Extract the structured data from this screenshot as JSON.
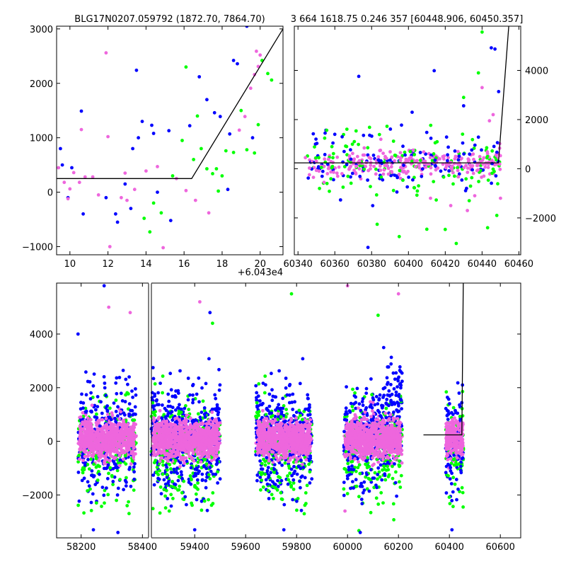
{
  "panels": {
    "top_left_title": "BLG17N0207.059792 (1872.70, 7864.70)",
    "top_right_title": "3 664 1618.75 0.246 357 [60448.906, 60450.357]",
    "top_left_offset": "+6.043e4"
  },
  "colors": {
    "blue": "#0000ff",
    "green": "#00ff00",
    "pink": "#ee66dd",
    "model": "#000000"
  },
  "chart_data": [
    {
      "id": "zoom",
      "type": "scatter",
      "title": "BLG17N0207.059792 (1872.70, 7864.70)",
      "x_offset_label": "+6.043e4",
      "xlim": [
        9.3,
        21.2
      ],
      "ylim": [
        -1150,
        3050
      ],
      "xticks": [
        10,
        12,
        14,
        16,
        18,
        20
      ],
      "yticks": [
        -1000,
        0,
        1000,
        2000,
        3000
      ],
      "model": [
        [
          9.3,
          250
        ],
        [
          16.4,
          250
        ],
        [
          21.2,
          3000
        ]
      ],
      "series": [
        {
          "color": "blue",
          "points": [
            [
              9.5,
              800
            ],
            [
              9.6,
              500
            ],
            [
              9.9,
              -100
            ],
            [
              10.1,
              450
            ],
            [
              10.6,
              1490
            ],
            [
              10.7,
              -400
            ],
            [
              11.9,
              -100
            ],
            [
              12.4,
              -400
            ],
            [
              12.5,
              -550
            ],
            [
              13.2,
              -300
            ],
            [
              13.3,
              800
            ],
            [
              13.6,
              1000
            ],
            [
              13.5,
              2240
            ],
            [
              13.8,
              1300
            ],
            [
              14.3,
              1230
            ],
            [
              14.6,
              0
            ],
            [
              15.2,
              1130
            ],
            [
              15.3,
              -520
            ],
            [
              16.3,
              1220
            ],
            [
              16.8,
              2120
            ],
            [
              17.2,
              1700
            ],
            [
              17.6,
              1460
            ],
            [
              17.9,
              1390
            ],
            [
              18.4,
              1070
            ],
            [
              18.6,
              2420
            ],
            [
              18.8,
              2360
            ],
            [
              19.3,
              3050
            ],
            [
              19.6,
              1000
            ],
            [
              18.3,
              50
            ],
            [
              14.4,
              1080
            ],
            [
              12.9,
              150
            ]
          ]
        },
        {
          "color": "green",
          "points": [
            [
              13.9,
              -480
            ],
            [
              14.2,
              -730
            ],
            [
              14.4,
              -200
            ],
            [
              14.8,
              -380
            ],
            [
              15.4,
              300
            ],
            [
              16.1,
              2300
            ],
            [
              16.5,
              600
            ],
            [
              16.9,
              800
            ],
            [
              17.2,
              430
            ],
            [
              17.5,
              340
            ],
            [
              17.7,
              430
            ],
            [
              18.0,
              300
            ],
            [
              18.2,
              760
            ],
            [
              18.6,
              730
            ],
            [
              19.0,
              1500
            ],
            [
              19.3,
              780
            ],
            [
              19.7,
              720
            ],
            [
              19.9,
              1240
            ],
            [
              20.1,
              2420
            ],
            [
              20.4,
              2180
            ],
            [
              20.6,
              2060
            ],
            [
              17.8,
              20
            ],
            [
              15.9,
              950
            ],
            [
              16.7,
              1400
            ]
          ]
        },
        {
          "color": "pink",
          "points": [
            [
              9.4,
              450
            ],
            [
              9.7,
              180
            ],
            [
              10.0,
              60
            ],
            [
              10.2,
              360
            ],
            [
              10.5,
              180
            ],
            [
              10.8,
              280
            ],
            [
              10.6,
              1150
            ],
            [
              11.2,
              280
            ],
            [
              11.9,
              2560
            ],
            [
              12.0,
              1020
            ],
            [
              12.1,
              -1000
            ],
            [
              12.7,
              -100
            ],
            [
              12.9,
              350
            ],
            [
              13.4,
              50
            ],
            [
              14.0,
              390
            ],
            [
              14.6,
              470
            ],
            [
              14.9,
              -1020
            ],
            [
              15.6,
              250
            ],
            [
              16.1,
              30
            ],
            [
              16.6,
              -150
            ],
            [
              17.3,
              -380
            ],
            [
              18.9,
              1140
            ],
            [
              19.2,
              1390
            ],
            [
              19.5,
              1910
            ],
            [
              19.7,
              2160
            ],
            [
              19.9,
              2310
            ],
            [
              20.0,
              2520
            ],
            [
              19.8,
              2590
            ],
            [
              9.9,
              -120
            ],
            [
              11.5,
              -50
            ],
            [
              13.0,
              -150
            ]
          ]
        }
      ]
    },
    {
      "id": "recent",
      "type": "scatter",
      "title": "3 664 1618.75 0.246 357 [60448.906, 60450.357]",
      "xlim": [
        60338,
        60461
      ],
      "ylim": [
        -3500,
        5800
      ],
      "xticks": [
        60340,
        60360,
        60380,
        60400,
        60420,
        60440,
        60460
      ],
      "yticks": [
        -2000,
        0,
        2000,
        4000
      ],
      "model": [
        [
          60338,
          240
        ],
        [
          60448.9,
          240
        ],
        [
          60454.5,
          5800
        ]
      ],
      "series": [
        {
          "color": "blue",
          "points": [
            [
              60373,
              3760
            ],
            [
              60378,
              -3200
            ],
            [
              60402,
              2300
            ],
            [
              60414,
              3990
            ],
            [
              60430,
              2560
            ],
            [
              60445,
              4920
            ],
            [
              60447,
              4870
            ],
            [
              60449,
              3140
            ],
            [
              60360,
              1400
            ],
            [
              60364,
              1300
            ]
          ]
        },
        {
          "color": "green",
          "points": [
            [
              60383,
              -2260
            ],
            [
              60395,
              -2760
            ],
            [
              60410,
              -2460
            ],
            [
              60420,
              -2470
            ],
            [
              60426,
              -3040
            ],
            [
              60430,
              2900
            ],
            [
              60438,
              3900
            ],
            [
              60440,
              5560
            ],
            [
              60443,
              -2400
            ],
            [
              60448,
              -1900
            ],
            [
              60433,
              -1300
            ]
          ]
        },
        {
          "color": "pink",
          "points": [
            [
              60344,
              450
            ],
            [
              60350,
              300
            ],
            [
              60356,
              -200
            ],
            [
              60368,
              520
            ],
            [
              60385,
              1200
            ],
            [
              60412,
              -1200
            ],
            [
              60423,
              -1500
            ],
            [
              60432,
              -1700
            ],
            [
              60436,
              -1100
            ],
            [
              60440,
              3300
            ],
            [
              60444,
              1950
            ],
            [
              60446,
              2200
            ],
            [
              60450,
              -1200
            ]
          ]
        }
      ]
    },
    {
      "id": "full",
      "type": "scatter",
      "xlim": [
        58120,
        60680
      ],
      "ylim": [
        -3600,
        5900
      ],
      "axis_break_x": 58420,
      "xticks": [
        58200,
        58400,
        59400,
        59600,
        59800,
        60000,
        60200,
        60400,
        60600
      ],
      "yticks": [
        -2000,
        0,
        2000,
        4000
      ],
      "seasons": [
        [
          58190,
          58380
        ],
        [
          59230,
          59500
        ],
        [
          59640,
          59860
        ],
        [
          59985,
          60215
        ],
        [
          60385,
          60455
        ]
      ],
      "model": [
        [
          60298,
          240
        ],
        [
          60448.9,
          240
        ],
        [
          60454.5,
          5900
        ]
      ],
      "series": [
        {
          "color": "blue",
          "points": [
            [
              58240,
              -3300
            ],
            [
              58275,
              5800
            ],
            [
              58320,
              -3400
            ],
            [
              59400,
              -3300
            ],
            [
              59750,
              -3300
            ],
            [
              60050,
              -3400
            ],
            [
              60410,
              -3300
            ],
            [
              58190,
              4000
            ],
            [
              59460,
              4800
            ]
          ]
        },
        {
          "color": "green",
          "points": [
            [
              58250,
              -2300
            ],
            [
              58350,
              -2400
            ],
            [
              59470,
              4400
            ],
            [
              59780,
              5500
            ],
            [
              60120,
              4700
            ],
            [
              59300,
              -2600
            ],
            [
              59830,
              -2700
            ]
          ]
        },
        {
          "color": "pink",
          "points": [
            [
              58290,
              5000
            ],
            [
              58360,
              4800
            ],
            [
              59420,
              5200
            ],
            [
              60000,
              5800
            ],
            [
              60200,
              5500
            ],
            [
              59990,
              -2600
            ]
          ]
        }
      ]
    }
  ]
}
